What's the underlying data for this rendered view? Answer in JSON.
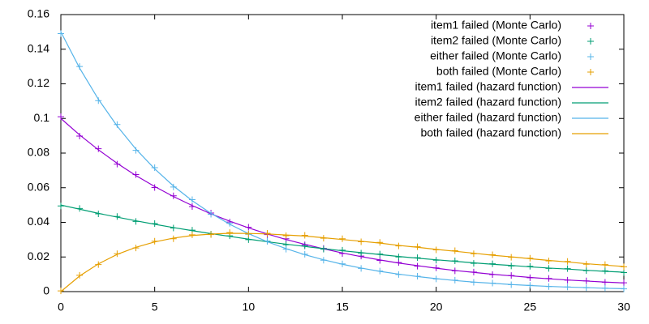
{
  "chart_data": {
    "type": "line",
    "x": [
      0,
      1,
      2,
      3,
      4,
      5,
      6,
      7,
      8,
      9,
      10,
      11,
      12,
      13,
      14,
      15,
      16,
      17,
      18,
      19,
      20,
      21,
      22,
      23,
      24,
      25,
      26,
      27,
      28,
      29,
      30
    ],
    "xlim": [
      0,
      30
    ],
    "xticks": [
      0,
      5,
      10,
      15,
      20,
      25,
      30
    ],
    "ylim": [
      0,
      0.16
    ],
    "yticks": [
      0,
      0.02,
      0.04,
      0.06,
      0.08,
      0.1,
      0.12,
      0.14,
      0.16
    ],
    "legend": "top-right",
    "series": [
      {
        "name": "item1 failed (Monte Carlo)",
        "color": "#9400d3",
        "style": "points",
        "values": [
          0.101,
          0.0898,
          0.0825,
          0.0736,
          0.0676,
          0.0601,
          0.0553,
          0.0491,
          0.0454,
          0.0402,
          0.0372,
          0.0329,
          0.0305,
          0.027,
          0.025,
          0.022,
          0.0205,
          0.018,
          0.0168,
          0.0147,
          0.0137,
          0.012,
          0.0113,
          0.0098,
          0.0093,
          0.008,
          0.0076,
          0.0066,
          0.0062,
          0.0054,
          0.0051
        ]
      },
      {
        "name": "item2 failed (Monte Carlo)",
        "color": "#009e73",
        "style": "points",
        "values": [
          0.0495,
          0.048,
          0.0449,
          0.0434,
          0.0405,
          0.0393,
          0.0367,
          0.0355,
          0.0332,
          0.0322,
          0.03,
          0.0291,
          0.0271,
          0.0264,
          0.0245,
          0.0239,
          0.0222,
          0.0217,
          0.02,
          0.0196,
          0.0181,
          0.0178,
          0.0163,
          0.0161,
          0.0148,
          0.0146,
          0.0134,
          0.0133,
          0.0121,
          0.012,
          0.011
        ]
      },
      {
        "name": "either failed (Monte Carlo)",
        "color": "#56b4e9",
        "style": "points",
        "values": [
          0.149,
          0.13,
          0.1103,
          0.0965,
          0.0816,
          0.0716,
          0.0604,
          0.0531,
          0.0447,
          0.0394,
          0.0331,
          0.0292,
          0.0245,
          0.0216,
          0.0181,
          0.016,
          0.0134,
          0.0119,
          0.0099,
          0.0089,
          0.0073,
          0.0066,
          0.0054,
          0.0049,
          0.004,
          0.0036,
          0.0029,
          0.0027,
          0.0022,
          0.002,
          0.0016
        ]
      },
      {
        "name": "both failed (Monte Carlo)",
        "color": "#e69f00",
        "style": "points",
        "values": [
          0.0004,
          0.0094,
          0.0156,
          0.0219,
          0.0252,
          0.0291,
          0.0305,
          0.0328,
          0.0329,
          0.0341,
          0.0333,
          0.0337,
          0.0323,
          0.0325,
          0.0308,
          0.0305,
          0.0288,
          0.0284,
          0.0264,
          0.0259,
          0.0241,
          0.0236,
          0.0219,
          0.0213,
          0.0198,
          0.0193,
          0.0177,
          0.0174,
          0.0158,
          0.0156,
          0.0143
        ]
      },
      {
        "name": "item1 failed (hazard function)",
        "color": "#9400d3",
        "style": "line",
        "values": [
          0.1,
          0.0905,
          0.0819,
          0.0741,
          0.067,
          0.0607,
          0.0549,
          0.0497,
          0.0449,
          0.0407,
          0.0368,
          0.0333,
          0.0301,
          0.0273,
          0.0247,
          0.0223,
          0.0202,
          0.0183,
          0.0165,
          0.015,
          0.0135,
          0.0122,
          0.0111,
          0.01,
          0.0091,
          0.0082,
          0.0074,
          0.0067,
          0.0061,
          0.0055,
          0.005
        ]
      },
      {
        "name": "item2 failed (hazard function)",
        "color": "#009e73",
        "style": "line",
        "values": [
          0.05,
          0.0476,
          0.0452,
          0.043,
          0.0409,
          0.0389,
          0.037,
          0.0352,
          0.0335,
          0.0319,
          0.0303,
          0.0288,
          0.0274,
          0.0261,
          0.0248,
          0.0236,
          0.0225,
          0.0214,
          0.0203,
          0.0193,
          0.0184,
          0.0175,
          0.0166,
          0.0158,
          0.0151,
          0.0143,
          0.0136,
          0.013,
          0.0123,
          0.0117,
          0.0112
        ]
      },
      {
        "name": "either failed (hazard function)",
        "color": "#56b4e9",
        "style": "line",
        "values": [
          0.15,
          0.1291,
          0.1111,
          0.0956,
          0.0823,
          0.0709,
          0.061,
          0.0525,
          0.0452,
          0.0389,
          0.0335,
          0.0288,
          0.0248,
          0.0213,
          0.0184,
          0.0158,
          0.0136,
          0.0117,
          0.0101,
          0.0087,
          0.0075,
          0.0064,
          0.0055,
          0.0048,
          0.0041,
          0.0035,
          0.003,
          0.0026,
          0.0023,
          0.0019,
          0.0017
        ]
      },
      {
        "name": "both failed (hazard function)",
        "color": "#e69f00",
        "style": "line",
        "values": [
          0,
          0.009,
          0.016,
          0.0215,
          0.0256,
          0.0287,
          0.0309,
          0.0324,
          0.0332,
          0.0337,
          0.0336,
          0.0333,
          0.0327,
          0.0321,
          0.0311,
          0.0301,
          0.0291,
          0.028,
          0.0267,
          0.0256,
          0.0244,
          0.0233,
          0.0222,
          0.021,
          0.0201,
          0.019,
          0.018,
          0.0171,
          0.0161,
          0.0153,
          0.0145
        ]
      }
    ]
  }
}
